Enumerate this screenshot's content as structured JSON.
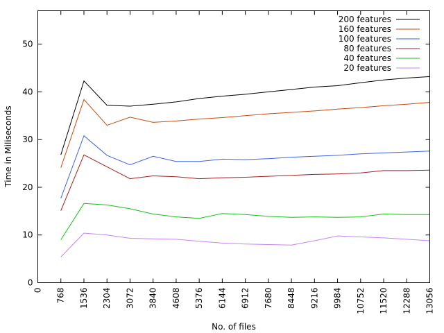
{
  "chart_data": {
    "type": "line",
    "title": "",
    "xlabel": "No. of files",
    "ylabel": "Time in Miliseconds",
    "x": [
      768,
      1536,
      2304,
      3072,
      3840,
      4608,
      5376,
      6144,
      6912,
      7680,
      8448,
      9216,
      9984,
      10752,
      11520,
      12288,
      13056
    ],
    "xticks": [
      0,
      768,
      1536,
      2304,
      3072,
      3840,
      4608,
      5376,
      6144,
      6912,
      7680,
      8448,
      9216,
      9984,
      10752,
      11520,
      12288,
      13056
    ],
    "xlim": [
      0,
      13056
    ],
    "yticks": [
      0,
      10,
      20,
      30,
      40,
      50
    ],
    "ylim": [
      0,
      57
    ],
    "grid": false,
    "legend_position": "top-right",
    "series": [
      {
        "name": "200 features",
        "color": "#000000",
        "values": [
          26.8,
          42.3,
          37.2,
          37.0,
          37.4,
          37.9,
          38.6,
          39.1,
          39.5,
          40.0,
          40.5,
          41.0,
          41.3,
          41.9,
          42.5,
          42.9,
          43.2
        ]
      },
      {
        "name": "160 features",
        "color": "#c84b0a",
        "values": [
          24.1,
          38.4,
          33.0,
          34.7,
          33.6,
          33.9,
          34.3,
          34.6,
          35.0,
          35.4,
          35.7,
          36.0,
          36.4,
          36.7,
          37.1,
          37.4,
          37.8
        ]
      },
      {
        "name": "100 features",
        "color": "#3b63e6",
        "values": [
          17.7,
          30.8,
          26.7,
          24.7,
          26.5,
          25.4,
          25.4,
          25.9,
          25.8,
          26.0,
          26.3,
          26.5,
          26.7,
          27.0,
          27.2,
          27.4,
          27.6
        ]
      },
      {
        "name": "80 features",
        "color": "#a31f1f",
        "values": [
          15.1,
          26.8,
          24.3,
          21.8,
          22.4,
          22.2,
          21.8,
          22.0,
          22.1,
          22.3,
          22.5,
          22.7,
          22.8,
          23.0,
          23.5,
          23.5,
          23.6
        ]
      },
      {
        "name": "40 features",
        "color": "#18c01a",
        "values": [
          9.0,
          16.6,
          16.3,
          15.5,
          14.4,
          13.8,
          13.5,
          14.5,
          14.3,
          13.9,
          13.7,
          13.8,
          13.7,
          13.8,
          14.4,
          14.3,
          14.3
        ]
      },
      {
        "name": "20 features",
        "color": "#c684f0",
        "values": [
          5.4,
          10.4,
          10.0,
          9.3,
          9.2,
          9.1,
          8.7,
          8.3,
          8.1,
          8.0,
          7.9,
          8.8,
          9.8,
          9.6,
          9.4,
          9.1,
          8.8
        ]
      }
    ]
  }
}
